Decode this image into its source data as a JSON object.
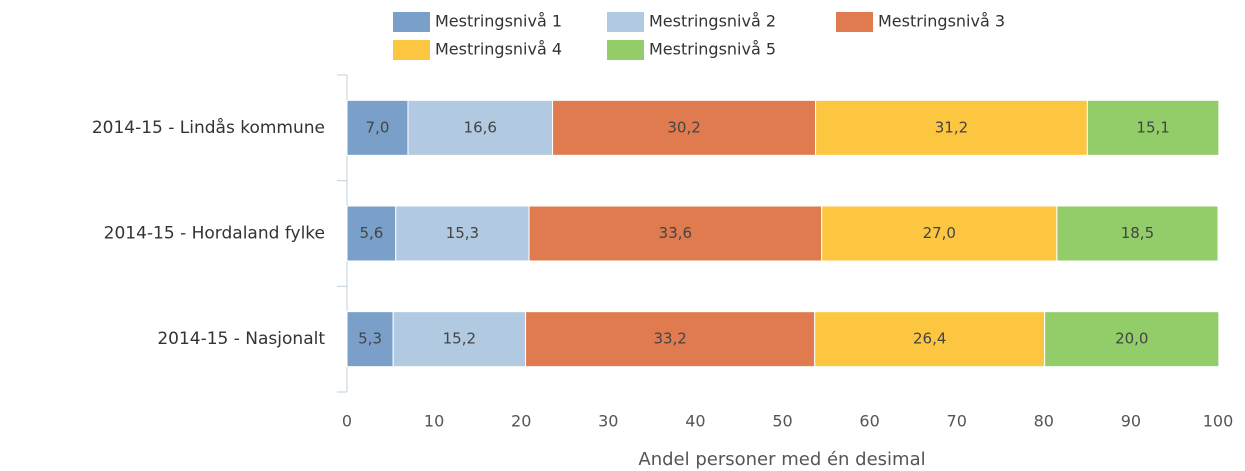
{
  "chart_data": {
    "type": "stacked_barh",
    "categories": [
      "2014-15 - Lindås kommune",
      "2014-15 - Hordaland fylke",
      "2014-15 - Nasjonalt"
    ],
    "series": [
      {
        "name": "Mestringsnivå 1",
        "color": "#7aa0c9",
        "values": [
          7.0,
          5.6,
          5.3
        ],
        "value_labels": [
          "7,0",
          "5,6",
          "5,3"
        ]
      },
      {
        "name": "Mestringsnivå 2",
        "color": "#b1c9e1",
        "values": [
          16.6,
          15.3,
          15.2
        ],
        "value_labels": [
          "16,6",
          "15,3",
          "15,2"
        ]
      },
      {
        "name": "Mestringsnivå 3",
        "color": "#e07b4f",
        "values": [
          30.2,
          33.6,
          33.2
        ],
        "value_labels": [
          "30,2",
          "33,6",
          "33,2"
        ]
      },
      {
        "name": "Mestringsnivå 4",
        "color": "#fdc641",
        "values": [
          31.2,
          27.0,
          26.4
        ],
        "value_labels": [
          "31,2",
          "27,0",
          "26,4"
        ]
      },
      {
        "name": "Mestringsnivå 5",
        "color": "#92cd6a",
        "values": [
          15.1,
          18.5,
          20.0
        ],
        "value_labels": [
          "15,1",
          "18,5",
          "20,0"
        ]
      }
    ],
    "xlim": [
      0,
      100
    ],
    "xticks": [
      0,
      10,
      20,
      30,
      40,
      50,
      60,
      70,
      80,
      90,
      100
    ],
    "xlabel": "Andel personer med én desimal",
    "grid": false,
    "legend": "top"
  }
}
